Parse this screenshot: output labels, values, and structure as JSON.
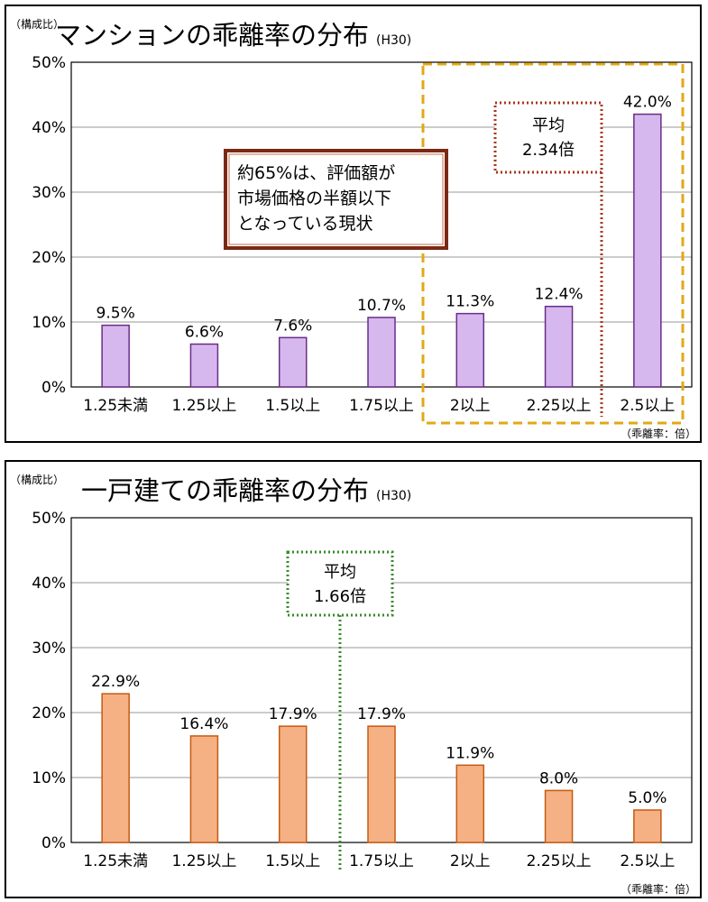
{
  "chart_data": [
    {
      "type": "bar",
      "title": "マンションの乖離率の分布",
      "period": "(H30)",
      "ylabel": "（構成比）",
      "xlabel": "（乖離率：倍）",
      "categories": [
        "1.25未満",
        "1.25以上",
        "1.5以上",
        "1.75以上",
        "2以上",
        "2.25以上",
        "2.5以上"
      ],
      "values": [
        9.5,
        6.6,
        7.6,
        10.7,
        11.3,
        12.4,
        42.0
      ],
      "value_labels": [
        "9.5%",
        "6.6%",
        "7.6%",
        "10.7%",
        "11.3%",
        "12.4%",
        "42.0%"
      ],
      "yticks": [
        "0%",
        "10%",
        "20%",
        "30%",
        "40%",
        "50%"
      ],
      "ylim": [
        0,
        50
      ],
      "grid": true,
      "bar_color": "#d6b8ee",
      "bar_edge": "#6a2d87",
      "average": {
        "line1": "平均",
        "line2": "2.34倍"
      },
      "note": [
        "約65%は、評価額が",
        "市場価格の半額以下",
        "となっている現状"
      ],
      "highlight_range": [
        "2以上",
        "2.5以上"
      ],
      "highlight_color": "#e3a817",
      "average_color": "#a8361e",
      "note_border": "#a8361e"
    },
    {
      "type": "bar",
      "title": "一戸建ての乖離率の分布",
      "period": "(H30)",
      "ylabel": "（構成比）",
      "xlabel": "（乖離率：倍）",
      "categories": [
        "1.25未満",
        "1.25以上",
        "1.5以上",
        "1.75以上",
        "2以上",
        "2.25以上",
        "2.5以上"
      ],
      "values": [
        22.9,
        16.4,
        17.9,
        17.9,
        11.9,
        8.0,
        5.0
      ],
      "value_labels": [
        "22.9%",
        "16.4%",
        "17.9%",
        "17.9%",
        "11.9%",
        "8.0%",
        "5.0%"
      ],
      "yticks": [
        "0%",
        "10%",
        "20%",
        "30%",
        "40%",
        "50%"
      ],
      "ylim": [
        0,
        50
      ],
      "grid": true,
      "bar_color": "#f5b184",
      "bar_edge": "#c55a11",
      "average": {
        "line1": "平均",
        "line2": "1.66倍"
      },
      "average_color": "#3a8a2e"
    }
  ]
}
